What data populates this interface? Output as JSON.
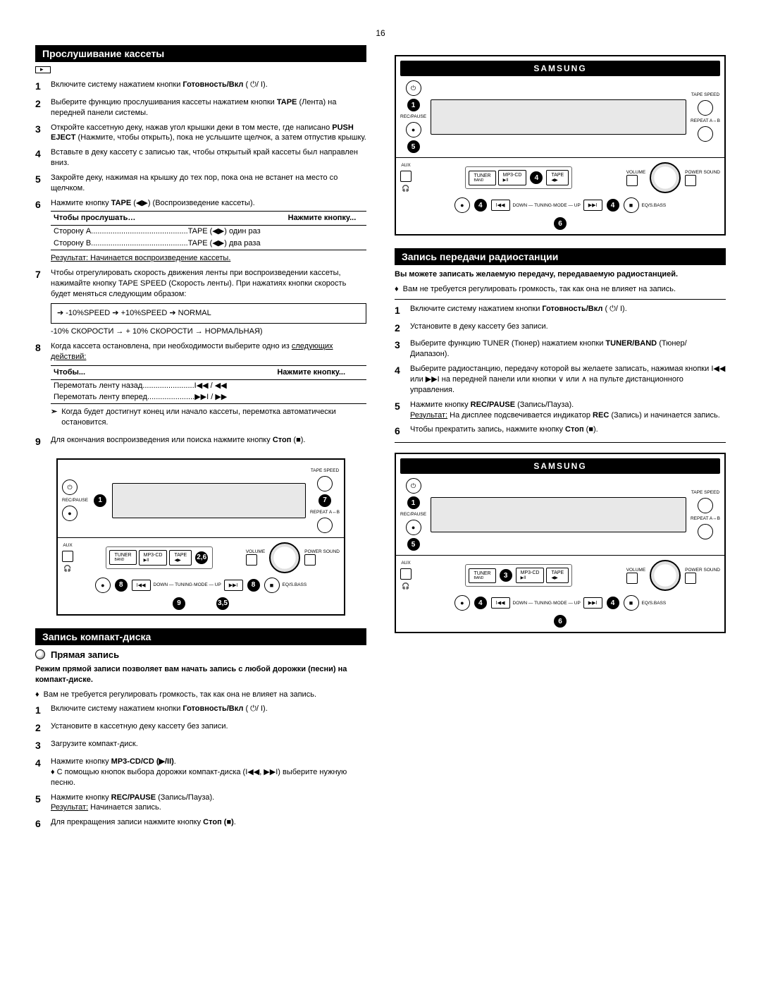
{
  "page_number": "16",
  "left": {
    "title1": "Прослушивание кассеты",
    "steps1": [
      {
        "n": "1",
        "html": "Включите систему нажатием кнопки <b>Готовность/Вкл</b> ( ⏻/ I)."
      },
      {
        "n": "2",
        "html": "Выберите функцию прослушивания кассеты нажатием кнопки <b>TAPE</b> (Лента) на передней панели системы."
      },
      {
        "n": "3",
        "html": "Откройте кассетную деку, нажав угол крышки деки в том месте, где написано <b>PUSH EJECT</b> (Нажмите, чтобы открыть), пока не услышите щелчок, а затем отпустив крышку."
      },
      {
        "n": "4",
        "html": "Вставьте в деку кассету с записью так, чтобы открытый край кассеты был направлен вниз."
      },
      {
        "n": "5",
        "html": "Закройте деку, нажимая на крышку до тех пор, пока она не встанет на место со щелчком."
      }
    ],
    "step6_lead": "Нажмите кнопку <b>TAPE</b> (◀▶) (Воспроизведение кассеты).",
    "table6": {
      "h1": "Чтобы прослушать…",
      "h2": "Нажмите кнопку...",
      "rows": [
        [
          "Сторону A.............................................TAPE (◀▶) один раз",
          ""
        ],
        [
          "Сторону B.............................................TAPE (◀▶) два раза",
          ""
        ]
      ],
      "result": "Результат: Начинается воспроизведение кассеты."
    },
    "step7": "Чтобы отрегулировать скорость движения ленты при воспроизведении кассеты, нажимайте кнопку TAPE SPEED (Скорость ленты). При нажатиях кнопки скорость будет меняться следующим образом:",
    "speed_diagram": "➔  -10%SPEED ➔  +10%SPEED  ➔ NORMAL",
    "speed_caption": "-10% СКОРОСТИ → + 10% СКОРОСТИ → НОРМАЛЬНАЯ)",
    "step8_lead": "Когда кассета остановлена, при необходимости выберите одно из <u>следующих действий:</u>",
    "table8": {
      "h1": "Чтобы...",
      "h2": "Нажмите кнопку...",
      "rows": [
        [
          "Перемотать ленту назад........................I◀◀ / ◀◀",
          ""
        ],
        [
          "Перемотать ленту вперед......................▶▶I / ▶▶",
          ""
        ]
      ]
    },
    "note8": "Когда будет достигнут конец или начало кассеты, перемотка автоматически остановится.",
    "step9": "Для окончания воспроизведения или поиска нажмите кнопку <b>Стоп</b> (■).",
    "device1_callouts": [
      "1",
      "7",
      "2,6",
      "8",
      "9",
      "8",
      "3,5"
    ],
    "title2": "Запись компакт-диска",
    "subheading": "Прямая запись",
    "intro2": "Режим прямой записи позволяет вам начать запись с любой дорожки (песни) на компакт-диске.",
    "bullet2": "Вам не требуется регулировать громкость, так как она не влияет на запись.",
    "steps2": [
      {
        "n": "1",
        "html": "Включите систему нажатием кнопки <b>Готовность/Вкл</b> ( ⏻/ I)."
      },
      {
        "n": "2",
        "html": "Установите в кассетную деку кассету без записи."
      },
      {
        "n": "3",
        "html": "Загрузите компакт-диск."
      },
      {
        "n": "4",
        "html": "Нажмите кнопку <b>MP3-CD/CD (▶/II)</b>.<br>♦ С помощью кнопок выбора дорожки компакт-диска (I◀◀, ▶▶I) выберите нужную песню."
      },
      {
        "n": "5",
        "html": "Нажмите кнопку <b>REC/PAUSE</b> (Запись/Пауза).<br><span class='result-line'>Результат:</span> Начинается запись."
      },
      {
        "n": "6",
        "html": "Для прекращения записи нажмите кнопку <b>Стоп (■)</b>."
      }
    ]
  },
  "right": {
    "device2_callouts": [
      "1",
      "5",
      "4",
      "4",
      "4",
      "6"
    ],
    "title": "Запись передачи радиостанции",
    "intro": "Вы можете записать желаемую передачу, передаваемую радиостанцией.",
    "bullet": "Вам не требуется регулировать громкость, так как она не влияет на запись.",
    "steps": [
      {
        "n": "1",
        "html": "Включите систему нажатием кнопки <b>Готовность/Вкл</b> ( ⏻/ I)."
      },
      {
        "n": "2",
        "html": "Установите в деку кассету без записи."
      },
      {
        "n": "3",
        "html": "Выберите функцию TUNER (Тюнер) нажатием кнопки <b>TUNER/BAND</b> (Тюнер/Диапазон)."
      },
      {
        "n": "4",
        "html": "Выберите радиостанцию, передачу которой вы желаете записать, нажимая кнопки I◀◀ или ▶▶I на передней панели или кнопки ∨ или ∧ на пульте дистанционного управления."
      },
      {
        "n": "5",
        "html": "Нажмите кнопку <b>REC/PAUSE</b> (Запись/Пауза).<br><span class='result-line'>Результат:</span> На дисплее подсвечивается индикатор <b>REC</b> (Запись) и начинается запись."
      },
      {
        "n": "6",
        "html": "Чтобы прекратить запись, нажмите кнопку <b>Стоп</b> (■)."
      }
    ],
    "device3_callouts": [
      "1",
      "5",
      "3",
      "4",
      "4",
      "6"
    ]
  },
  "device_labels": {
    "brand": "SAMSUNG",
    "rec": "REC/PAUSE",
    "aux": "AUX",
    "tuner": "TUNER",
    "band": "BAND",
    "mp3": "MP3-CD",
    "tape": "TAPE",
    "vol": "VOLUME",
    "pow": "POWER\nSOUND",
    "tapespeed": "TAPE\nSPEED",
    "repeat": "REPEAT\nA↔B",
    "eq": "EQ/S.BASS",
    "tuning": "DOWN — TUNING·MODE — UP"
  }
}
